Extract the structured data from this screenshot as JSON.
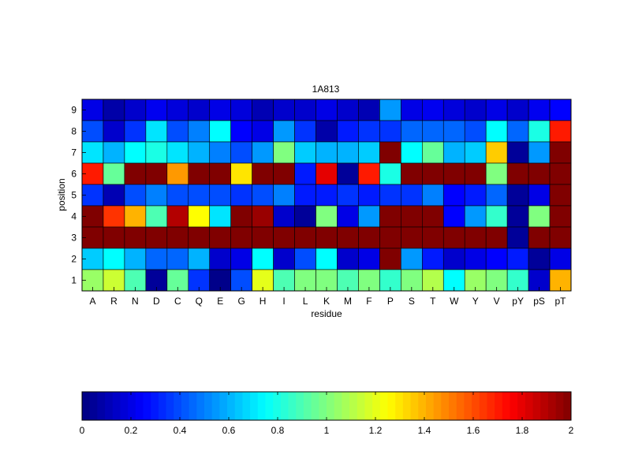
{
  "chart_data": [
    {
      "type": "heatmap",
      "title": "1A813",
      "xlabel": "residue",
      "ylabel": "position",
      "x": [
        "A",
        "R",
        "N",
        "D",
        "C",
        "Q",
        "E",
        "G",
        "H",
        "I",
        "L",
        "K",
        "M",
        "F",
        "P",
        "S",
        "T",
        "W",
        "Y",
        "V",
        "pY",
        "pS",
        "pT"
      ],
      "y": [
        "9",
        "8",
        "7",
        "6",
        "5",
        "4",
        "3",
        "2",
        "1"
      ],
      "colormap": "jet",
      "clim": [
        0,
        2
      ],
      "values": [
        [
          0.2,
          0.08,
          0.15,
          0.22,
          0.18,
          0.15,
          0.2,
          0.18,
          0.1,
          0.15,
          0.15,
          0.2,
          0.15,
          0.1,
          0.55,
          0.2,
          0.22,
          0.18,
          0.15,
          0.2,
          0.15,
          0.22,
          0.25
        ],
        [
          0.4,
          0.15,
          0.35,
          0.7,
          0.4,
          0.5,
          0.75,
          0.25,
          0.2,
          0.55,
          0.35,
          0.08,
          0.3,
          0.35,
          0.35,
          0.45,
          0.45,
          0.45,
          0.4,
          0.75,
          0.45,
          0.8,
          1.7
        ],
        [
          0.7,
          0.6,
          0.75,
          0.8,
          0.7,
          0.6,
          0.5,
          0.4,
          0.55,
          1.0,
          0.65,
          0.6,
          0.6,
          0.65,
          2.0,
          0.75,
          0.95,
          0.6,
          0.65,
          1.35,
          0.05,
          0.55,
          2.0
        ],
        [
          1.7,
          0.95,
          2.0,
          2.0,
          1.45,
          2.0,
          2.0,
          1.3,
          2.0,
          2.0,
          0.3,
          1.8,
          0.05,
          1.7,
          0.8,
          2.0,
          2.0,
          2.0,
          2.0,
          1.0,
          2.0,
          2.0,
          2.0
        ],
        [
          0.35,
          0.1,
          0.4,
          0.5,
          0.4,
          0.4,
          0.4,
          0.35,
          0.4,
          0.5,
          0.3,
          0.3,
          0.35,
          0.3,
          0.35,
          0.35,
          0.5,
          0.25,
          0.3,
          0.45,
          0.05,
          0.2,
          2.0
        ],
        [
          2.0,
          1.65,
          1.4,
          0.9,
          1.9,
          1.25,
          0.7,
          2.0,
          1.95,
          0.15,
          0.05,
          1.0,
          0.2,
          0.55,
          2.0,
          2.0,
          2.0,
          0.25,
          0.55,
          0.85,
          0.05,
          1.0,
          2.0
        ],
        [
          2.0,
          2.0,
          2.0,
          2.0,
          2.0,
          2.0,
          2.0,
          2.0,
          2.0,
          2.0,
          2.0,
          2.0,
          2.0,
          2.0,
          2.0,
          2.0,
          2.0,
          2.0,
          2.0,
          2.0,
          0.05,
          2.0,
          2.0
        ],
        [
          0.65,
          0.75,
          0.6,
          0.45,
          0.45,
          0.6,
          0.15,
          0.2,
          0.75,
          0.15,
          0.4,
          0.75,
          0.15,
          0.2,
          2.0,
          0.55,
          0.3,
          0.15,
          0.2,
          0.25,
          0.3,
          0.05,
          0.2
        ],
        [
          1.05,
          1.15,
          0.9,
          0.05,
          0.95,
          0.35,
          0.02,
          0.4,
          1.2,
          0.9,
          1.0,
          1.0,
          0.9,
          1.0,
          0.85,
          1.0,
          1.1,
          0.75,
          1.05,
          1.0,
          0.85,
          0.15,
          1.4
        ]
      ]
    },
    {
      "type": "colorbar",
      "colormap": "jet",
      "range": [
        0,
        2
      ],
      "ticks": [
        "0",
        "0.2",
        "0.4",
        "0.6",
        "0.8",
        "1",
        "1.2",
        "1.4",
        "1.6",
        "1.8",
        "2"
      ]
    }
  ]
}
